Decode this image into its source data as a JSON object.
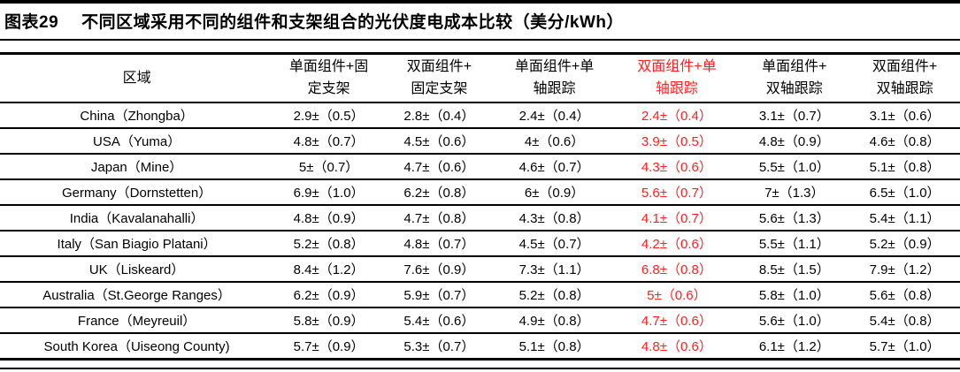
{
  "title": {
    "label": "图表29",
    "text": "不同区域采用不同的组件和支架组合的光伏度电成本比较（美分/kWh）"
  },
  "colors": {
    "highlight_red": "#ff2020",
    "text_black": "#000000",
    "background": "#ffffff"
  },
  "table": {
    "region_header": "区域",
    "columns": [
      {
        "line1": "单面组件+固",
        "line2": "定支架",
        "highlight": false
      },
      {
        "line1": "双面组件+",
        "line2": "固定支架",
        "highlight": false
      },
      {
        "line1": "单面组件+单",
        "line2": "轴跟踪",
        "highlight": false
      },
      {
        "line1": "双面组件+单",
        "line2": "轴跟踪",
        "highlight": true
      },
      {
        "line1": "单面组件+",
        "line2": "双轴跟踪",
        "highlight": false
      },
      {
        "line1": "双面组件+",
        "line2": "双轴跟踪",
        "highlight": false
      }
    ],
    "rows": [
      {
        "region": "China（Zhongba）",
        "values": [
          "2.9±（0.5）",
          "2.8±（0.4）",
          "2.4±（0.4）",
          "2.4±（0.4）",
          "3.1±（0.7）",
          "3.1±（0.6）"
        ]
      },
      {
        "region": "USA（Yuma）",
        "values": [
          "4.8±（0.7）",
          "4.5±（0.6）",
          "4±（0.6）",
          "3.9±（0.5）",
          "4.8±（0.9）",
          "4.6±（0.8）"
        ]
      },
      {
        "region": "Japan（Mine）",
        "values": [
          "5±（0.7）",
          "4.7±（0.6）",
          "4.6±（0.7）",
          "4.3±（0.6）",
          "5.5±（1.0）",
          "5.1±（0.8）"
        ]
      },
      {
        "region": "Germany（Dornstetten）",
        "values": [
          "6.9±（1.0）",
          "6.2±（0.8）",
          "6±（0.9）",
          "5.6±（0.7）",
          "7±（1.3）",
          "6.5±（1.0）"
        ]
      },
      {
        "region": "India（Kavalanahalli）",
        "values": [
          "4.8±（0.9）",
          "4.7±（0.8）",
          "4.3±（0.8）",
          "4.1±（0.7）",
          "5.6±（1.3）",
          "5.4±（1.1）"
        ]
      },
      {
        "region": "Italy（San Biagio Platani）",
        "values": [
          "5.2±（0.8）",
          "4.8±（0.7）",
          "4.5±（0.7）",
          "4.2±（0.6）",
          "5.5±（1.1）",
          "5.2±（0.9）"
        ]
      },
      {
        "region": "UK（Liskeard）",
        "values": [
          "8.4±（1.2）",
          "7.6±（0.9）",
          "7.3±（1.1）",
          "6.8±（0.8）",
          "8.5±（1.5）",
          "7.9±（1.2）"
        ]
      },
      {
        "region": "Australia（St.George Ranges）",
        "values": [
          "6.2±（0.9）",
          "5.9±（0.7）",
          "5.2±（0.8）",
          "5±（0.6）",
          "5.8±（1.0）",
          "5.6±（0.8）"
        ]
      },
      {
        "region": "France（Meyreuil）",
        "values": [
          "5.8±（0.9）",
          "5.4±（0.6）",
          "4.9±（0.8）",
          "4.7±（0.6）",
          "5.6±（1.0）",
          "5.4±（0.8）"
        ]
      },
      {
        "region": "South Korea（Uiseong County)",
        "values": [
          "5.7±（0.9）",
          "5.3±（0.7）",
          "5.1±（0.8）",
          "4.8±（0.6）",
          "6.1±（1.2）",
          "5.7±（1.0）"
        ]
      }
    ]
  },
  "chart_data": {
    "type": "table",
    "title": "不同区域采用不同的组件和支架组合的光伏度电成本比较",
    "unit": "美分/kWh",
    "columns": [
      "单面组件+固定支架",
      "双面组件+固定支架",
      "单面组件+单轴跟踪",
      "双面组件+单轴跟踪",
      "单面组件+双轴跟踪",
      "双面组件+双轴跟踪"
    ],
    "highlight_column": "双面组件+单轴跟踪",
    "rows": [
      {
        "region": "China (Zhongba)",
        "values": [
          2.9,
          2.8,
          2.4,
          2.4,
          3.1,
          3.1
        ],
        "errors": [
          0.5,
          0.4,
          0.4,
          0.4,
          0.7,
          0.6
        ]
      },
      {
        "region": "USA (Yuma)",
        "values": [
          4.8,
          4.5,
          4,
          3.9,
          4.8,
          4.6
        ],
        "errors": [
          0.7,
          0.6,
          0.6,
          0.5,
          0.9,
          0.8
        ]
      },
      {
        "region": "Japan (Mine)",
        "values": [
          5,
          4.7,
          4.6,
          4.3,
          5.5,
          5.1
        ],
        "errors": [
          0.7,
          0.6,
          0.7,
          0.6,
          1.0,
          0.8
        ]
      },
      {
        "region": "Germany (Dornstetten)",
        "values": [
          6.9,
          6.2,
          6,
          5.6,
          7,
          6.5
        ],
        "errors": [
          1.0,
          0.8,
          0.9,
          0.7,
          1.3,
          1.0
        ]
      },
      {
        "region": "India (Kavalanahalli)",
        "values": [
          4.8,
          4.7,
          4.3,
          4.1,
          5.6,
          5.4
        ],
        "errors": [
          0.9,
          0.8,
          0.8,
          0.7,
          1.3,
          1.1
        ]
      },
      {
        "region": "Italy (San Biagio Platani)",
        "values": [
          5.2,
          4.8,
          4.5,
          4.2,
          5.5,
          5.2
        ],
        "errors": [
          0.8,
          0.7,
          0.7,
          0.6,
          1.1,
          0.9
        ]
      },
      {
        "region": "UK (Liskeard)",
        "values": [
          8.4,
          7.6,
          7.3,
          6.8,
          8.5,
          7.9
        ],
        "errors": [
          1.2,
          0.9,
          1.1,
          0.8,
          1.5,
          1.2
        ]
      },
      {
        "region": "Australia (St.George Ranges)",
        "values": [
          6.2,
          5.9,
          5.2,
          5,
          5.8,
          5.6
        ],
        "errors": [
          0.9,
          0.7,
          0.8,
          0.6,
          1.0,
          0.8
        ]
      },
      {
        "region": "France (Meyreuil)",
        "values": [
          5.8,
          5.4,
          4.9,
          4.7,
          5.6,
          5.4
        ],
        "errors": [
          0.9,
          0.6,
          0.8,
          0.6,
          1.0,
          0.8
        ]
      },
      {
        "region": "South Korea (Uiseong County)",
        "values": [
          5.7,
          5.3,
          5.1,
          4.8,
          6.1,
          5.7
        ],
        "errors": [
          0.9,
          0.7,
          0.8,
          0.6,
          1.2,
          1.0
        ]
      }
    ]
  }
}
